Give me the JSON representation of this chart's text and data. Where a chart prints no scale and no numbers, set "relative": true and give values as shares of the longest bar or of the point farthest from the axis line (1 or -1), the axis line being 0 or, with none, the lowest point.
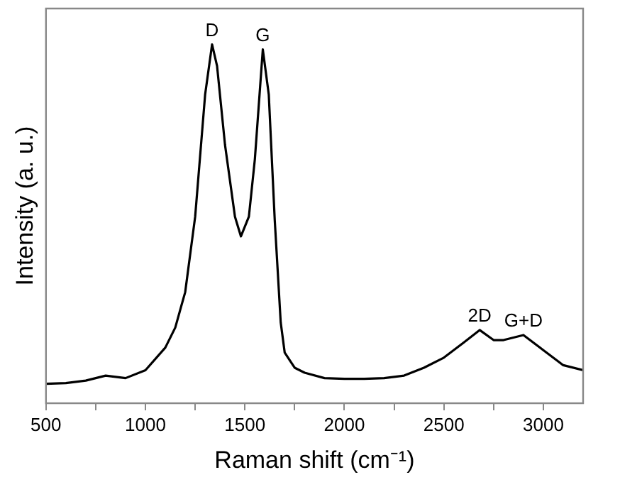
{
  "chart_data": {
    "type": "line",
    "xlabel": "Raman shift (cm⁻¹)",
    "ylabel": "Intensity (a. u.)",
    "relative": true,
    "xlim": [
      500,
      3200
    ],
    "xticks": [
      500,
      {
        "value": 750,
        "label": null
      },
      1000,
      {
        "value": 1250,
        "label": null
      },
      1500,
      {
        "value": 1750,
        "label": null
      },
      2000,
      {
        "value": 2250,
        "label": null
      },
      2500,
      {
        "value": 2750,
        "label": null
      },
      3000
    ],
    "grid": false,
    "legend": false,
    "marker": "none",
    "line_style": "solid",
    "series": [
      {
        "color": "#000000",
        "x": [
          500,
          600,
          700,
          800,
          900,
          1000,
          1100,
          1150,
          1200,
          1250,
          1300,
          1335,
          1360,
          1400,
          1450,
          1480,
          1520,
          1550,
          1590,
          1620,
          1650,
          1680,
          1700,
          1750,
          1800,
          1900,
          2000,
          2100,
          2200,
          2300,
          2400,
          2500,
          2600,
          2680,
          2750,
          2800,
          2900,
          3000,
          3100,
          3200
        ],
        "values": [
          0.054,
          0.056,
          0.063,
          0.077,
          0.07,
          0.092,
          0.155,
          0.211,
          0.31,
          0.52,
          0.86,
          1.0,
          0.94,
          0.72,
          0.52,
          0.465,
          0.52,
          0.68,
          0.986,
          0.86,
          0.51,
          0.225,
          0.141,
          0.099,
          0.085,
          0.07,
          0.068,
          0.068,
          0.07,
          0.077,
          0.099,
          0.127,
          0.169,
          0.204,
          0.176,
          0.176,
          0.19,
          0.148,
          0.106,
          0.092
        ]
      }
    ],
    "annotations": [
      {
        "text": "D",
        "x": 1335,
        "y": 1.0
      },
      {
        "text": "G",
        "x": 1590,
        "y": 0.986
      },
      {
        "text": "2D",
        "x": 2680,
        "y": 0.204
      },
      {
        "text": "G+D",
        "x": 2900,
        "y": 0.19
      }
    ]
  }
}
